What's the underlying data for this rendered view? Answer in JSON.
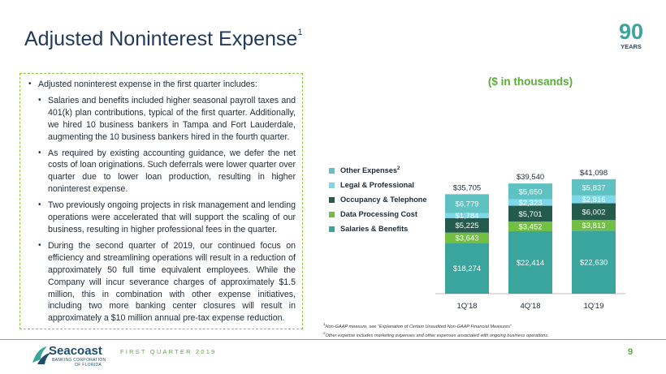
{
  "title": {
    "text": "Adjusted Noninterest Expense",
    "footnote_mark": "1"
  },
  "logo": {
    "number": "90",
    "text": "YEARS"
  },
  "bullets": [
    {
      "level": 1,
      "text": "Adjusted noninterest expense in the first quarter includes:"
    },
    {
      "level": 2,
      "text": "Salaries and benefits included higher seasonal payroll taxes and 401(k) plan contributions, typical of the first quarter. Additionally, we hired 10 business bankers in Tampa and Fort Lauderdale, augmenting the 10 business bankers hired in the fourth quarter."
    },
    {
      "level": 2,
      "text": "As required by existing accounting guidance, we defer the net costs of loan originations. Such deferrals were lower quarter over quarter due to lower loan production, resulting in higher noninterest expense."
    },
    {
      "level": 2,
      "text": "Two previously ongoing projects in risk management and lending operations were accelerated that will support the scaling of our business, resulting in higher professional fees in the quarter."
    },
    {
      "level": 2,
      "text": "During the second quarter of 2019, our continued focus on efficiency and streamlining operations will result in a reduction of approximately 50 full time equivalent employees. While the Company will incur severance charges of approximately $1.5 million, this in combination with other expense initiatives, including two more banking center closures will result in approximately a $10 million annual pre-tax expense reduction."
    }
  ],
  "chart_unit_label": "($ in thousands)",
  "chart_data": {
    "type": "bar",
    "stacked": true,
    "categories": [
      "1Q'18",
      "4Q'18",
      "1Q'19"
    ],
    "totals": [
      "$35,705",
      "$39,540",
      "$41,098"
    ],
    "total_values": [
      35705,
      39540,
      41098
    ],
    "series": [
      {
        "name": "Salaries & Benefits",
        "color": "#3aa59c",
        "values": [
          18274,
          22414,
          22630
        ],
        "labels": [
          "$18,274",
          "$22,414",
          "$22,630"
        ]
      },
      {
        "name": "Data Processing Cost",
        "color": "#72bf44",
        "values": [
          3643,
          3452,
          3813
        ],
        "labels": [
          "$3,643",
          "$3,452",
          "$3,813"
        ]
      },
      {
        "name": "Occupancy & Telephone",
        "color": "#245b4c",
        "values": [
          5225,
          5701,
          6002
        ],
        "labels": [
          "$5,225",
          "$5,701",
          "$6,002"
        ]
      },
      {
        "name": "Legal & Professional",
        "color": "#7dd9ea",
        "values": [
          1784,
          2323,
          2816
        ],
        "labels": [
          "$1,784",
          "$2,323",
          "$2,816"
        ]
      },
      {
        "name": "Other Expenses",
        "name_sup": "2",
        "color": "#5ec2c2",
        "values": [
          6779,
          5650,
          5837
        ],
        "labels": [
          "$6,779",
          "$5,650",
          "$5,837"
        ]
      }
    ],
    "legend_position": "left",
    "grid": false
  },
  "footnotes": [
    {
      "mark": "1",
      "text": "Non-GAAP measure, see “Explanation of Certain Unaudited Non-GAAP Financial Measures”"
    },
    {
      "mark": "2",
      "text": "Other expense includes marketing expenses and other expenses associated with ongoing business operations."
    }
  ],
  "footer": {
    "brand_name": "Seacoast",
    "brand_sub1": "BANKING CORPORATION",
    "brand_sub2": "OF FLORIDA",
    "quarter": "FIRST QUARTER 2019",
    "page_number": "9"
  }
}
